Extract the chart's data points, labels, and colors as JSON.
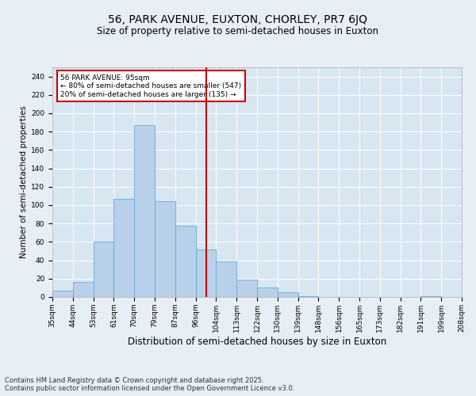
{
  "title1": "56, PARK AVENUE, EUXTON, CHORLEY, PR7 6JQ",
  "title2": "Size of property relative to semi-detached houses in Euxton",
  "xlabel": "Distribution of semi-detached houses by size in Euxton",
  "ylabel": "Number of semi-detached properties",
  "bin_labels": [
    "35sqm",
    "44sqm",
    "53sqm",
    "61sqm",
    "70sqm",
    "79sqm",
    "87sqm",
    "96sqm",
    "104sqm",
    "113sqm",
    "122sqm",
    "130sqm",
    "139sqm",
    "148sqm",
    "156sqm",
    "165sqm",
    "173sqm",
    "182sqm",
    "191sqm",
    "199sqm",
    "208sqm"
  ],
  "bar_heights": [
    7,
    16,
    60,
    107,
    187,
    104,
    78,
    52,
    39,
    19,
    10,
    5,
    1,
    0,
    0,
    0,
    0,
    0,
    1,
    0
  ],
  "bar_color": "#b8d0ea",
  "bar_edge_color": "#6aaad4",
  "vline_position": 7.5,
  "vline_color": "#cc0000",
  "annotation_text": "56 PARK AVENUE: 95sqm\n← 80% of semi-detached houses are smaller (547)\n20% of semi-detached houses are larger (135) →",
  "annotation_box_color": "#cc0000",
  "ylim": [
    0,
    250
  ],
  "yticks": [
    0,
    20,
    40,
    60,
    80,
    100,
    120,
    140,
    160,
    180,
    200,
    220,
    240
  ],
  "bg_color": "#e8eef5",
  "plot_bg_color": "#d8e6f2",
  "grid_color": "#ffffff",
  "footer": "Contains HM Land Registry data © Crown copyright and database right 2025.\nContains public sector information licensed under the Open Government Licence v3.0.",
  "title1_fontsize": 10,
  "title2_fontsize": 8.5,
  "xlabel_fontsize": 8.5,
  "ylabel_fontsize": 7.5,
  "tick_fontsize": 6.5,
  "footer_fontsize": 6
}
